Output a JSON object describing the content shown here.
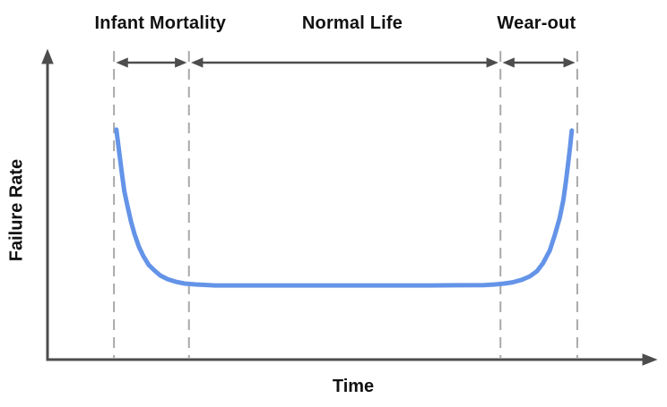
{
  "chart_data": {
    "type": "line",
    "title": "",
    "xlabel": "Time",
    "ylabel": "Failure Rate",
    "axis_arrows": true,
    "grid": false,
    "ticks": [],
    "regions": [
      {
        "label": "Infant Mortality",
        "x_start": 0.109,
        "x_end": 0.232,
        "label_x": 0.185
      },
      {
        "label": "Normal Life",
        "x_start": 0.232,
        "x_end": 0.743,
        "label_x": 0.5
      },
      {
        "label": "Wear-out",
        "x_start": 0.743,
        "x_end": 0.869,
        "label_x": 0.802
      }
    ],
    "series": [
      {
        "name": "failure-rate-bathtub-curve",
        "color": "#6494E8",
        "points": [
          [
            0.113,
            0.741
          ],
          [
            0.118,
            0.663
          ],
          [
            0.122,
            0.599
          ],
          [
            0.126,
            0.542
          ],
          [
            0.131,
            0.496
          ],
          [
            0.137,
            0.444
          ],
          [
            0.143,
            0.403
          ],
          [
            0.15,
            0.363
          ],
          [
            0.157,
            0.334
          ],
          [
            0.166,
            0.305
          ],
          [
            0.175,
            0.288
          ],
          [
            0.185,
            0.271
          ],
          [
            0.197,
            0.259
          ],
          [
            0.21,
            0.251
          ],
          [
            0.225,
            0.245
          ],
          [
            0.243,
            0.242
          ],
          [
            0.275,
            0.239
          ],
          [
            0.393,
            0.239
          ],
          [
            0.51,
            0.239
          ],
          [
            0.628,
            0.239
          ],
          [
            0.716,
            0.24
          ],
          [
            0.734,
            0.242
          ],
          [
            0.749,
            0.245
          ],
          [
            0.763,
            0.249
          ],
          [
            0.778,
            0.257
          ],
          [
            0.791,
            0.268
          ],
          [
            0.803,
            0.285
          ],
          [
            0.813,
            0.311
          ],
          [
            0.824,
            0.352
          ],
          [
            0.832,
            0.401
          ],
          [
            0.84,
            0.455
          ],
          [
            0.846,
            0.513
          ],
          [
            0.85,
            0.568
          ],
          [
            0.854,
            0.631
          ],
          [
            0.857,
            0.683
          ],
          [
            0.86,
            0.738
          ]
        ]
      }
    ],
    "colors": {
      "axis": "#4D4D4D",
      "annotation_arrows": "#4D4D4D",
      "boundary_dashed_lines": "#A9A9A9",
      "text": "#111111",
      "background": "#FFFFFF"
    }
  }
}
